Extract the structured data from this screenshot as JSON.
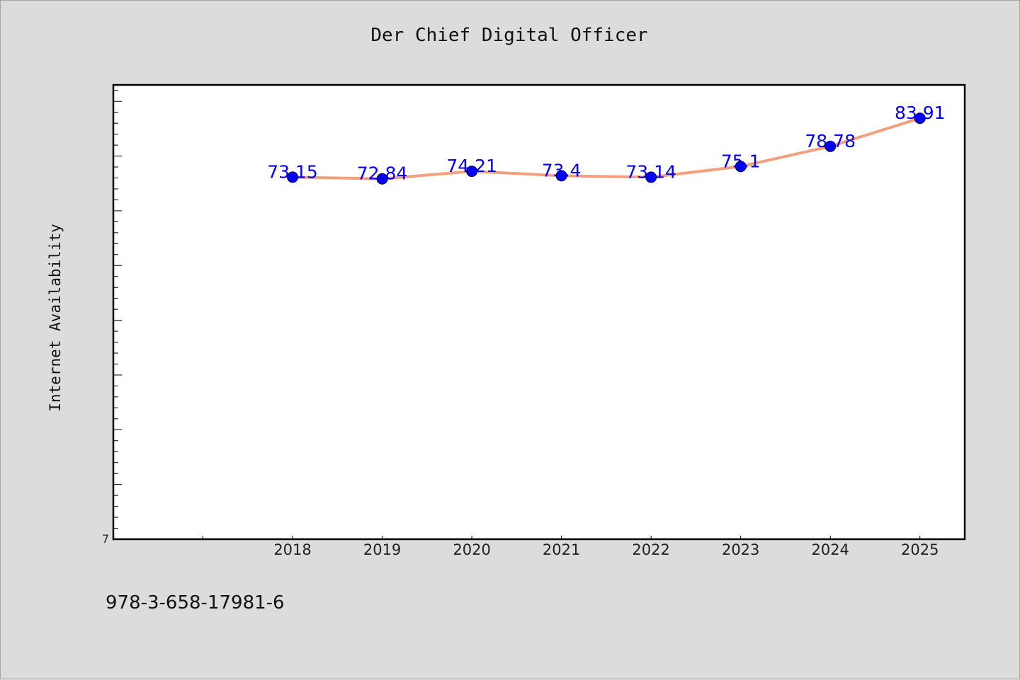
{
  "chart_data": {
    "type": "line",
    "title": "Der Chief Digital Officer",
    "ylabel": "Internet Availability",
    "xlabel": "",
    "x": [
      "2018",
      "2019",
      "2020",
      "2021",
      "2022",
      "2023",
      "2024",
      "2025"
    ],
    "series": [
      {
        "values": [
          73.15,
          72.84,
          74.21,
          73.4,
          73.14,
          75.1,
          78.78,
          83.91
        ],
        "data_labels": [
          "73.15",
          "72.84",
          "74.21",
          "73.4",
          "73.14",
          "75.1",
          "78.78",
          "83.91"
        ]
      }
    ],
    "x_domain": [
      2016,
      2025.5
    ],
    "ylim": [
      7,
      90
    ],
    "y_tick_labels": [
      "7"
    ],
    "grid": false,
    "line_color": "#f4a07e",
    "marker_color": "#0000ff",
    "label_color": "#0000ff"
  },
  "footnote": "978-3-658-17981-6"
}
